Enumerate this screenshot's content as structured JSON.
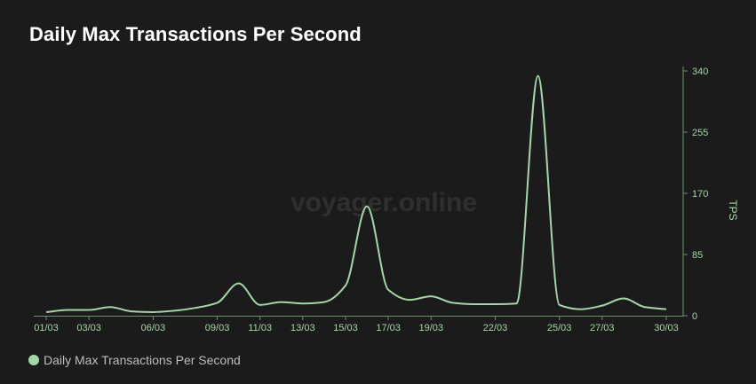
{
  "header": {
    "title": "Daily Max Transactions Per Second"
  },
  "watermark": "voyager.online",
  "chart_data": {
    "type": "line",
    "title": "Daily Max Transactions Per Second",
    "ylabel": "TPS",
    "xlabel": "",
    "ylim": [
      0,
      340
    ],
    "yticks": [
      0,
      85,
      170,
      255,
      340
    ],
    "x": [
      "01/03",
      "02/03",
      "03/03",
      "04/03",
      "05/03",
      "06/03",
      "07/03",
      "08/03",
      "09/03",
      "10/03",
      "11/03",
      "12/03",
      "13/03",
      "14/03",
      "15/03",
      "16/03",
      "17/03",
      "18/03",
      "19/03",
      "20/03",
      "21/03",
      "22/03",
      "23/03",
      "24/03",
      "25/03",
      "26/03",
      "27/03",
      "28/03",
      "29/03",
      "30/03"
    ],
    "xtick_labels": [
      "01/03",
      "03/03",
      "06/03",
      "09/03",
      "11/03",
      "13/03",
      "15/03",
      "17/03",
      "19/03",
      "22/03",
      "25/03",
      "27/03",
      "30/03"
    ],
    "series": [
      {
        "name": "Daily Max Transactions Per Second",
        "color": "#a5d6a7",
        "values": [
          5,
          8,
          8,
          12,
          6,
          5,
          7,
          11,
          18,
          45,
          15,
          19,
          17,
          19,
          42,
          152,
          36,
          22,
          27,
          18,
          16,
          16,
          17,
          333,
          15,
          9,
          14,
          24,
          12,
          9
        ]
      }
    ],
    "grid": false,
    "legend": "bottom-left"
  },
  "colors": {
    "background": "#1b1b1b",
    "line": "#a5d6a7",
    "axis": "#6f8f70",
    "tick_text": "#a5d6a7",
    "title": "#ffffff",
    "watermark": "#2f2f2f"
  }
}
